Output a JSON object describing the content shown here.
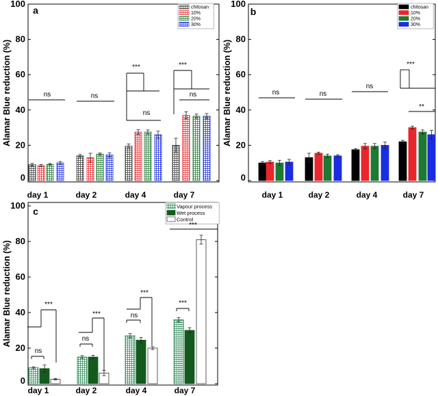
{
  "colors": {
    "chitosan": "#3a3a3a",
    "p10": "#e8262b",
    "p20": "#1e7a33",
    "p30": "#1a2de0",
    "vapour": "#2e8b57",
    "wet": "#145a1e",
    "control": "#ffffff"
  },
  "chart_data": [
    {
      "type": "bar",
      "panel": "a",
      "ylabel": "Alamar Blue reduction (%)",
      "ylim": [
        0,
        100
      ],
      "yticks": [
        "0",
        "20",
        "40",
        "60",
        "80",
        "100"
      ],
      "categories": [
        "day 1",
        "day 2",
        "day 4",
        "day 7"
      ],
      "series": [
        {
          "name": "chitosan",
          "values": [
            9,
            14,
            19.5,
            20
          ],
          "errors": [
            0.7,
            0.8,
            1.2,
            4
          ]
        },
        {
          "name": "10%",
          "values": [
            8.5,
            13,
            27.5,
            37
          ],
          "errors": [
            0.6,
            2.5,
            1.3,
            2
          ]
        },
        {
          "name": "20%",
          "values": [
            9.2,
            15,
            27.5,
            36.5
          ],
          "errors": [
            0.5,
            0.6,
            1.2,
            1.2
          ]
        },
        {
          "name": "30%",
          "values": [
            10,
            14.5,
            26,
            36.5
          ],
          "errors": [
            0.8,
            1.2,
            2,
            1.5
          ]
        }
      ],
      "annotations": [
        "ns",
        "ns",
        "***",
        "ns",
        "***",
        "ns"
      ]
    },
    {
      "type": "bar",
      "panel": "b",
      "ylabel": "Alamar Blue reduction (%)",
      "ylim": [
        0,
        100
      ],
      "yticks": [
        "0",
        "20",
        "40",
        "60",
        "80",
        "100"
      ],
      "categories": [
        "day 1",
        "day 2",
        "day 4",
        "day 7"
      ],
      "series": [
        {
          "name": "chitosan",
          "values": [
            10,
            13,
            17.5,
            22
          ],
          "errors": [
            0.8,
            2.5,
            0.6,
            0.8
          ]
        },
        {
          "name": "10%",
          "values": [
            10.5,
            15.5,
            19.5,
            30
          ],
          "errors": [
            0.8,
            0.6,
            1.5,
            0.8
          ]
        },
        {
          "name": "20%",
          "values": [
            10,
            14,
            19.5,
            27.5
          ],
          "errors": [
            1.5,
            1,
            1.5,
            1.2
          ]
        },
        {
          "name": "30%",
          "values": [
            10.5,
            14,
            20,
            26
          ],
          "errors": [
            1.5,
            0.6,
            1.8,
            2.5
          ]
        }
      ],
      "annotations": [
        "ns",
        "ns",
        "ns",
        "***",
        "**"
      ]
    },
    {
      "type": "bar",
      "panel": "c",
      "ylabel": "Alamar Blue reduction (%)",
      "ylim": [
        0,
        100
      ],
      "yticks": [
        "0",
        "20",
        "40",
        "60",
        "80",
        "100"
      ],
      "categories": [
        "day 1",
        "day 2",
        "day 4",
        "day 7"
      ],
      "series": [
        {
          "name": "Vapour process",
          "values": [
            9,
            15,
            27,
            36
          ],
          "errors": [
            0.5,
            0.8,
            1.2,
            1.2
          ]
        },
        {
          "name": "Wet process",
          "values": [
            8.5,
            15,
            24.5,
            30
          ],
          "errors": [
            2,
            1,
            1.5,
            1.5
          ]
        },
        {
          "name": "Control",
          "values": [
            2.5,
            6,
            20,
            81
          ],
          "errors": [
            0.4,
            1.5,
            0.8,
            2.5
          ]
        }
      ],
      "annotations": [
        "ns",
        "***",
        "ns",
        "***",
        "ns",
        "***",
        "***",
        "***"
      ]
    }
  ]
}
